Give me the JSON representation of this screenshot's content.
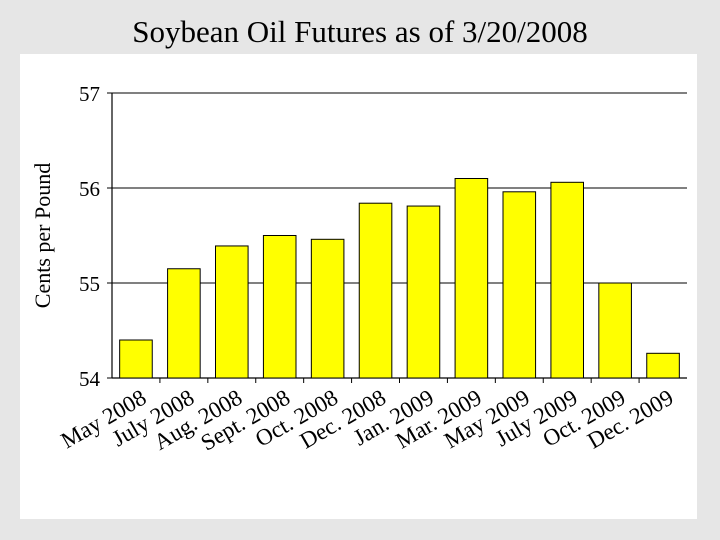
{
  "slide": {
    "title": "Soybean Oil Futures as of 3/20/2008"
  },
  "chart_data": {
    "type": "bar",
    "title": "Soybean Oil Futures as of 3/20/2008",
    "xlabel": "",
    "ylabel": "Cents per Pound",
    "ylim": [
      54,
      57
    ],
    "yticks": [
      "54",
      "55",
      "56",
      "57"
    ],
    "grid": true,
    "legend": "none",
    "bar_color": "#ffff00",
    "categories": [
      "May 2008",
      "July 2008",
      "Aug. 2008",
      "Sept. 2008",
      "Oct. 2008",
      "Dec. 2008",
      "Jan. 2009",
      "Mar. 2009",
      "May 2009",
      "July 2009",
      "Oct. 2009",
      "Dec. 2009"
    ],
    "values": [
      54.4,
      55.15,
      55.39,
      55.5,
      55.46,
      55.84,
      55.81,
      56.1,
      55.96,
      56.06,
      55.0,
      54.26
    ]
  }
}
